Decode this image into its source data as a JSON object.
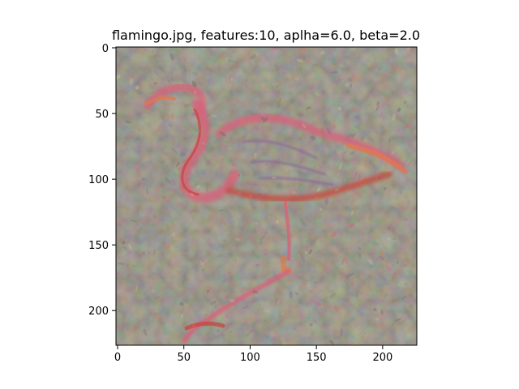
{
  "figure": {
    "title": "flamingo.jpg, features:10, aplha=6.0, beta=2.0"
  },
  "image": {
    "description_tag": "feature-visualization",
    "palette": {
      "base": "#857c70",
      "base_dark": "#6f6a60",
      "base_light": "#9a9384",
      "pink": "#d9607a",
      "orange": "#e0784e",
      "red": "#c8463c",
      "teal": "#6e9a8a",
      "violet": "#8a6a9a",
      "green": "#7a8a5e",
      "cream": "#c8bca0"
    }
  },
  "axes": {
    "x": {
      "ticks": [
        0,
        50,
        100,
        150,
        200
      ],
      "tick_labels": [
        "0",
        "50",
        "100",
        "150",
        "200"
      ],
      "range": [
        0,
        227
      ]
    },
    "y": {
      "ticks": [
        0,
        50,
        100,
        150,
        200
      ],
      "tick_labels": [
        "0",
        "50",
        "100",
        "150",
        "200"
      ],
      "range": [
        0,
        227
      ]
    }
  }
}
